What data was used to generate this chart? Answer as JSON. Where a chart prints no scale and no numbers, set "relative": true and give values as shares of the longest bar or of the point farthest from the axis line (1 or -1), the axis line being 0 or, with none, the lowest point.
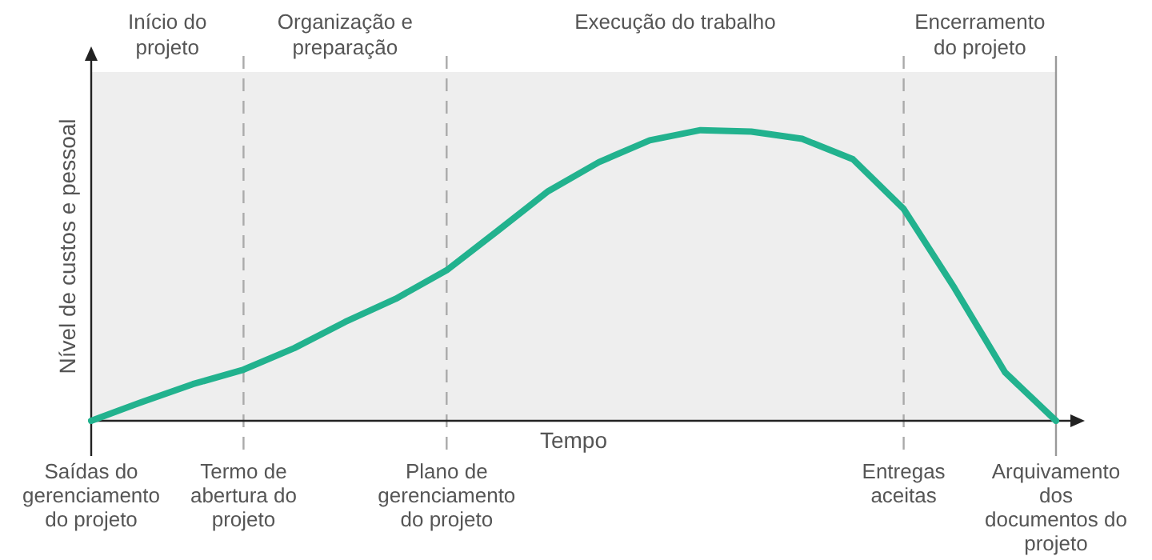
{
  "chart_data": {
    "type": "line",
    "relative": true,
    "xlabel": "Tempo",
    "ylabel": "Nível de custos e pessoal",
    "legend": false,
    "marker": "none",
    "line_style": "solid",
    "categories": [
      "Saídas do gerenciamento do projeto",
      null,
      null,
      "Termo de abertura do projeto",
      null,
      null,
      null,
      "Plano de gerenciamento do projeto",
      null,
      null,
      null,
      null,
      null,
      null,
      null,
      null,
      "Entregas aceitas",
      null,
      null,
      "Arquivamento dos documentos do projeto"
    ],
    "series": [
      {
        "color": "#22b28e",
        "values": [
          0,
          0.065,
          0.126,
          0.176,
          0.25,
          0.34,
          0.42,
          0.518,
          0.653,
          0.79,
          0.89,
          0.965,
          1,
          0.995,
          0.97,
          0.9,
          0.729,
          0.457,
          0.166,
          0
        ]
      }
    ],
    "ref_lines": [
      {
        "axis": "x",
        "value": "Termo de abertura do projeto",
        "color": "#aaaaaa",
        "line_style": "dashed"
      },
      {
        "axis": "x",
        "value": "Plano de gerenciamento do projeto",
        "color": "#aaaaaa",
        "line_style": "dashed"
      },
      {
        "axis": "x",
        "value": "Entregas aceitas",
        "color": "#aaaaaa",
        "line_style": "dashed"
      },
      {
        "axis": "x",
        "value": "Arquivamento dos documentos do projeto",
        "color": "#999999",
        "line_style": "solid"
      }
    ],
    "annotations": [
      "Início do projeto",
      "Organização e preparação",
      "Execução do trabalho",
      "Encerramento do projeto"
    ]
  }
}
